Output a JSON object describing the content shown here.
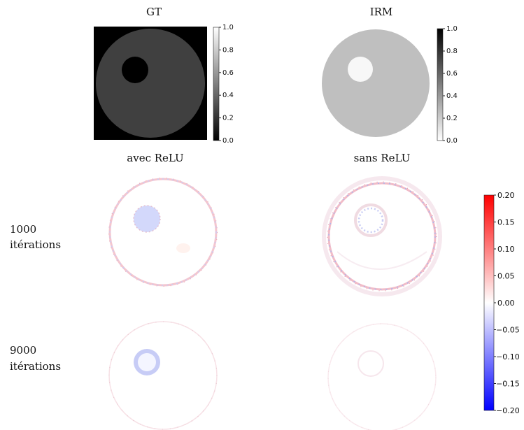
{
  "panels": {
    "gt": {
      "title": "GT"
    },
    "irm": {
      "title": "IRM"
    },
    "relu": {
      "title": "avec ReLU"
    },
    "norelu": {
      "title": "sans ReLU"
    }
  },
  "rows": {
    "r1000": {
      "line1": "1000",
      "line2": "itérations"
    },
    "r9000": {
      "line1": "9000",
      "line2": "itérations"
    }
  },
  "colorbars": {
    "gray": {
      "ticks": [
        "1.0",
        "0.8",
        "0.6",
        "0.4",
        "0.2",
        "0.0"
      ]
    },
    "diverging": {
      "ticks": [
        "0.20",
        "0.15",
        "0.10",
        "0.05",
        "0.00",
        "−0.05",
        "−0.10",
        "−0.15",
        "−0.20"
      ],
      "colors": {
        "positive": "#ff0000",
        "zero": "#ffffff",
        "negative": "#0000ff"
      }
    }
  }
}
